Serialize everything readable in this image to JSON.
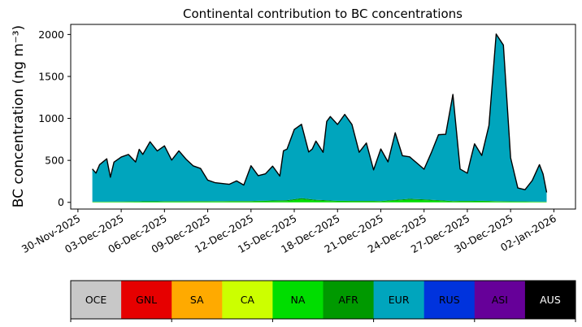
{
  "chart_data": {
    "type": "area",
    "title": "Continental contribution to BC concentrations",
    "ylabel": "BC concentration (ng m⁻³)",
    "xlabel": "",
    "ylim": [
      -80,
      2120
    ],
    "yticks": [
      0,
      500,
      1000,
      1500,
      2000
    ],
    "xlim": [
      "2025-11-29T12:00",
      "2026-01-03T12:00"
    ],
    "xticks": [
      "2025-11-30",
      "2025-12-03",
      "2025-12-06",
      "2025-12-09",
      "2025-12-12",
      "2025-12-15",
      "2025-12-18",
      "2025-12-21",
      "2025-12-24",
      "2025-12-27",
      "2025-12-30",
      "2026-01-02"
    ],
    "xtick_labels": [
      "30-Nov-2025",
      "03-Dec-2025",
      "06-Dec-2025",
      "09-Dec-2025",
      "12-Dec-2025",
      "15-Dec-2025",
      "18-Dec-2025",
      "21-Dec-2025",
      "24-Dec-2025",
      "27-Dec-2025",
      "30-Dec-2025",
      "02-Jan-2026"
    ],
    "grid": false,
    "legend": {
      "placement": "bottom",
      "entries": [
        {
          "label": "OCE",
          "color": "#c8c8c8",
          "text_color": "#000000"
        },
        {
          "label": "GNL",
          "color": "#e60000",
          "text_color": "#000000"
        },
        {
          "label": "SA",
          "color": "#ffaa00",
          "text_color": "#000000"
        },
        {
          "label": "CA",
          "color": "#ccff00",
          "text_color": "#000000"
        },
        {
          "label": "NA",
          "color": "#00dd00",
          "text_color": "#000000"
        },
        {
          "label": "AFR",
          "color": "#009900",
          "text_color": "#000000"
        },
        {
          "label": "EUR",
          "color": "#00a5bd",
          "text_color": "#000000"
        },
        {
          "label": "RUS",
          "color": "#0033dd",
          "text_color": "#000000"
        },
        {
          "label": "ASI",
          "color": "#660099",
          "text_color": "#000000"
        },
        {
          "label": "AUS",
          "color": "#000000",
          "text_color": "#ffffff"
        }
      ]
    },
    "total_line_color": "#000000",
    "series": [
      {
        "name": "NA",
        "x": [
          "2025-12-01T00:00",
          "2025-12-06T00:00",
          "2025-12-12T00:00",
          "2025-12-14T12:00",
          "2025-12-15T12:00",
          "2025-12-16T12:00",
          "2025-12-18T00:00",
          "2025-12-21T00:00",
          "2025-12-22T12:00",
          "2025-12-23T00:00",
          "2025-12-24T00:00",
          "2025-12-26T00:00",
          "2025-12-28T00:00",
          "2025-12-30T00:00",
          "2026-01-01T12:00"
        ],
        "values": [
          5,
          8,
          10,
          15,
          35,
          20,
          12,
          10,
          25,
          30,
          25,
          10,
          12,
          8,
          5
        ]
      },
      {
        "name": "AFR",
        "x": [
          "2025-12-01T00:00",
          "2025-12-06T00:00",
          "2025-12-12T00:00",
          "2025-12-14T12:00",
          "2025-12-15T12:00",
          "2025-12-16T12:00",
          "2025-12-18T00:00",
          "2025-12-21T00:00",
          "2025-12-22T12:00",
          "2025-12-23T00:00",
          "2025-12-24T00:00",
          "2025-12-26T00:00",
          "2025-12-28T00:00",
          "2025-12-30T00:00",
          "2026-01-01T12:00"
        ],
        "values": [
          3,
          5,
          6,
          10,
          15,
          10,
          6,
          6,
          10,
          12,
          10,
          6,
          6,
          4,
          3
        ]
      },
      {
        "name": "EUR",
        "x": [
          "2025-12-01T00:00",
          "2025-12-01T06:00",
          "2025-12-01T12:00",
          "2025-12-02T00:00",
          "2025-12-02T06:00",
          "2025-12-02T12:00",
          "2025-12-03T00:00",
          "2025-12-03T12:00",
          "2025-12-04T00:00",
          "2025-12-04T06:00",
          "2025-12-04T12:00",
          "2025-12-05T00:00",
          "2025-12-05T12:00",
          "2025-12-06T00:00",
          "2025-12-06T12:00",
          "2025-12-07T00:00",
          "2025-12-07T12:00",
          "2025-12-08T00:00",
          "2025-12-08T12:00",
          "2025-12-09T00:00",
          "2025-12-09T12:00",
          "2025-12-10T00:00",
          "2025-12-10T12:00",
          "2025-12-11T00:00",
          "2025-12-11T12:00",
          "2025-12-12T00:00",
          "2025-12-12T12:00",
          "2025-12-13T00:00",
          "2025-12-13T12:00",
          "2025-12-14T00:00",
          "2025-12-14T06:00",
          "2025-12-14T12:00",
          "2025-12-15T00:00",
          "2025-12-15T12:00",
          "2025-12-16T00:00",
          "2025-12-16T06:00",
          "2025-12-16T12:00",
          "2025-12-17T00:00",
          "2025-12-17T06:00",
          "2025-12-17T12:00",
          "2025-12-18T00:00",
          "2025-12-18T12:00",
          "2025-12-19T00:00",
          "2025-12-19T12:00",
          "2025-12-20T00:00",
          "2025-12-20T12:00",
          "2025-12-21T00:00",
          "2025-12-21T12:00",
          "2025-12-22T00:00",
          "2025-12-22T12:00",
          "2025-12-23T00:00",
          "2025-12-23T12:00",
          "2025-12-24T00:00",
          "2025-12-24T12:00",
          "2025-12-25T00:00",
          "2025-12-25T12:00",
          "2025-12-26T00:00",
          "2025-12-26T12:00",
          "2025-12-27T00:00",
          "2025-12-27T06:00",
          "2025-12-27T12:00",
          "2025-12-28T00:00",
          "2025-12-28T12:00",
          "2025-12-29T00:00",
          "2025-12-29T12:00",
          "2025-12-30T00:00",
          "2025-12-30T12:00",
          "2025-12-31T00:00",
          "2025-12-31T12:00",
          "2026-01-01T00:00",
          "2026-01-01T06:00",
          "2026-01-01T12:00"
        ],
        "values": [
          390,
          340,
          440,
          510,
          290,
          470,
          530,
          560,
          470,
          620,
          560,
          710,
          600,
          660,
          490,
          600,
          500,
          420,
          390,
          250,
          220,
          210,
          200,
          240,
          190,
          420,
          300,
          320,
          410,
          290,
          590,
          610,
          830,
          880,
          560,
          600,
          700,
          570,
          940,
          1000,
          910,
          1030,
          910,
          580,
          690,
          370,
          620,
          460,
          800,
          520,
          500,
          430,
          360,
          560,
          780,
          790,
          1270,
          380,
          330,
          510,
          680,
          540,
          900,
          1990,
          1860,
          520,
          160,
          140,
          250,
          440,
          330,
          110
        ]
      }
    ]
  }
}
